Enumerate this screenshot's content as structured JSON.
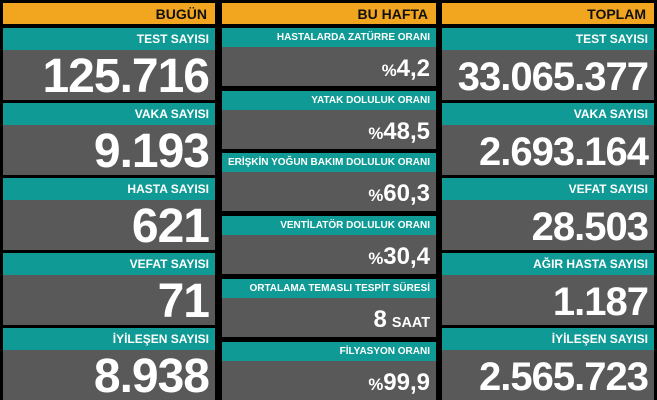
{
  "columns": [
    {
      "header": "BUGÜN",
      "items": [
        {
          "label": "TEST SAYISI",
          "value": "125.716"
        },
        {
          "label": "VAKA SAYISI",
          "value": "9.193"
        },
        {
          "label": "HASTA SAYISI",
          "value": "621"
        },
        {
          "label": "VEFAT SAYISI",
          "value": "71"
        },
        {
          "label": "İYİLEŞEN SAYISI",
          "value": "8.938"
        }
      ]
    },
    {
      "header": "BU HAFTA",
      "items": [
        {
          "label": "HASTALARDA ZATÜRRE ORANI",
          "prefix": "%",
          "value": "4,2"
        },
        {
          "label": "YATAK DOLULUK ORANI",
          "prefix": "%",
          "value": "48,5"
        },
        {
          "label": "ERİŞKİN YOĞUN BAKIM DOLULUK ORANI",
          "prefix": "%",
          "value": "60,3"
        },
        {
          "label": "VENTİLATÖR DOLULUK ORANI",
          "prefix": "%",
          "value": "30,4"
        },
        {
          "label": "ORTALAMA TEMASLI TESPİT SÜRESİ",
          "value": "8",
          "suffix": "SAAT"
        },
        {
          "label": "FİLYASYON ORANI",
          "prefix": "%",
          "value": "99,9"
        }
      ]
    },
    {
      "header": "TOPLAM",
      "items": [
        {
          "label": "TEST SAYISI",
          "value": "33.065.377"
        },
        {
          "label": "VAKA SAYISI",
          "value": "2.693.164"
        },
        {
          "label": "VEFAT SAYISI",
          "value": "28.503"
        },
        {
          "label": "AĞIR HASTA SAYISI",
          "value": "1.187"
        },
        {
          "label": "İYİLEŞEN SAYISI",
          "value": "2.565.723"
        }
      ]
    }
  ]
}
